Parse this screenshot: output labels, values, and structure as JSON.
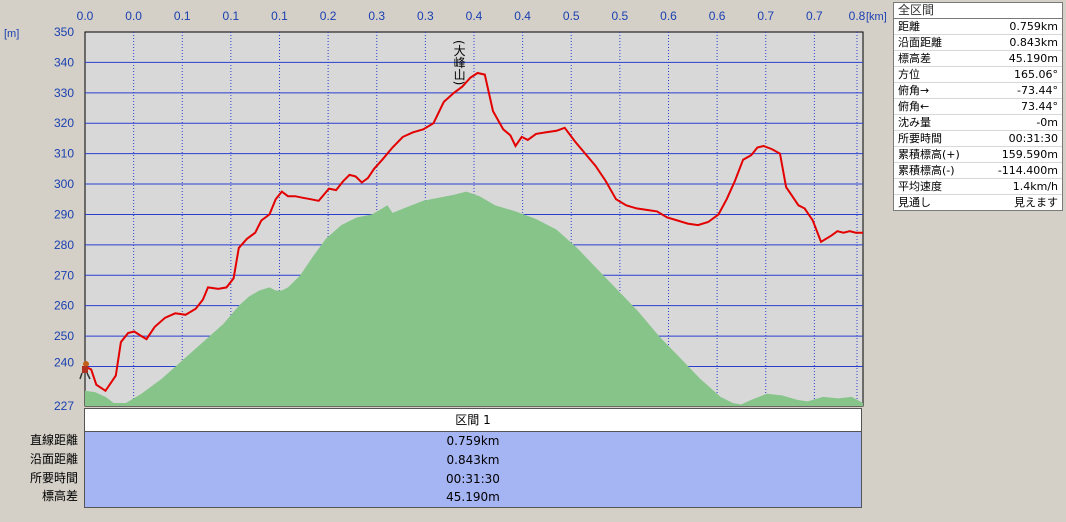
{
  "chart_data": {
    "type": "line",
    "x_unit": "[km]",
    "y_unit": "[m]",
    "x_tick_labels": [
      "0.0",
      "0.0",
      "0.1",
      "0.1",
      "0.1",
      "0.2",
      "0.3",
      "0.3",
      "0.4",
      "0.4",
      "0.5",
      "0.5",
      "0.6",
      "0.6",
      "0.7",
      "0.7",
      "0.8"
    ],
    "y_tick_labels": [
      "227",
      "240",
      "250",
      "260",
      "270",
      "280",
      "290",
      "300",
      "310",
      "320",
      "330",
      "340",
      "350"
    ],
    "ylim": [
      227,
      350
    ],
    "xlim": [
      0,
      0.759
    ],
    "grid": true,
    "peak_label": "(大峰山)",
    "peak_x": 0.365,
    "series": [
      {
        "color": "#e30000",
        "points": [
          [
            0.0,
            240
          ],
          [
            0.006,
            239
          ],
          [
            0.011,
            234
          ],
          [
            0.02,
            232
          ],
          [
            0.03,
            237
          ],
          [
            0.035,
            248
          ],
          [
            0.042,
            251
          ],
          [
            0.048,
            251.5
          ],
          [
            0.055,
            250
          ],
          [
            0.06,
            249
          ],
          [
            0.068,
            253
          ],
          [
            0.078,
            256
          ],
          [
            0.088,
            257.5
          ],
          [
            0.098,
            257
          ],
          [
            0.108,
            259
          ],
          [
            0.115,
            262
          ],
          [
            0.12,
            266
          ],
          [
            0.13,
            265.5
          ],
          [
            0.138,
            266
          ],
          [
            0.145,
            269
          ],
          [
            0.15,
            279
          ],
          [
            0.158,
            282
          ],
          [
            0.166,
            284
          ],
          [
            0.172,
            288
          ],
          [
            0.18,
            290
          ],
          [
            0.186,
            295
          ],
          [
            0.192,
            297.5
          ],
          [
            0.198,
            296
          ],
          [
            0.205,
            296
          ],
          [
            0.212,
            295.5
          ],
          [
            0.22,
            295
          ],
          [
            0.228,
            294.5
          ],
          [
            0.238,
            298.5
          ],
          [
            0.245,
            298
          ],
          [
            0.252,
            301
          ],
          [
            0.258,
            303
          ],
          [
            0.264,
            302.5
          ],
          [
            0.27,
            300.5
          ],
          [
            0.276,
            302
          ],
          [
            0.282,
            305
          ],
          [
            0.29,
            308
          ],
          [
            0.3,
            312
          ],
          [
            0.31,
            315.5
          ],
          [
            0.32,
            317
          ],
          [
            0.33,
            318
          ],
          [
            0.34,
            320
          ],
          [
            0.35,
            327
          ],
          [
            0.36,
            330
          ],
          [
            0.368,
            332
          ],
          [
            0.376,
            335
          ],
          [
            0.383,
            336.5
          ],
          [
            0.39,
            336
          ],
          [
            0.398,
            324
          ],
          [
            0.408,
            318
          ],
          [
            0.415,
            316
          ],
          [
            0.42,
            312.5
          ],
          [
            0.426,
            315.5
          ],
          [
            0.432,
            314.5
          ],
          [
            0.44,
            316.5
          ],
          [
            0.45,
            317
          ],
          [
            0.46,
            317.5
          ],
          [
            0.468,
            318.5
          ],
          [
            0.478,
            314
          ],
          [
            0.488,
            310
          ],
          [
            0.498,
            306
          ],
          [
            0.508,
            301
          ],
          [
            0.518,
            295
          ],
          [
            0.528,
            293
          ],
          [
            0.538,
            292
          ],
          [
            0.548,
            291.5
          ],
          [
            0.558,
            291
          ],
          [
            0.568,
            289
          ],
          [
            0.578,
            288
          ],
          [
            0.588,
            287
          ],
          [
            0.598,
            286.5
          ],
          [
            0.608,
            287.5
          ],
          [
            0.618,
            290
          ],
          [
            0.626,
            295
          ],
          [
            0.634,
            301
          ],
          [
            0.642,
            308
          ],
          [
            0.65,
            309.5
          ],
          [
            0.656,
            312
          ],
          [
            0.662,
            312.5
          ],
          [
            0.67,
            311.5
          ],
          [
            0.678,
            310
          ],
          [
            0.684,
            299
          ],
          [
            0.69,
            296
          ],
          [
            0.696,
            293
          ],
          [
            0.702,
            292
          ],
          [
            0.71,
            288
          ],
          [
            0.718,
            281
          ],
          [
            0.728,
            283
          ],
          [
            0.734,
            284.5
          ],
          [
            0.74,
            284
          ],
          [
            0.746,
            284.5
          ],
          [
            0.752,
            284
          ],
          [
            0.759,
            284
          ]
        ]
      }
    ],
    "area_series": {
      "color": "#86c48a",
      "points": [
        [
          0.0,
          232
        ],
        [
          0.01,
          231.5
        ],
        [
          0.02,
          230
        ],
        [
          0.028,
          228
        ],
        [
          0.04,
          228
        ],
        [
          0.055,
          231
        ],
        [
          0.075,
          236
        ],
        [
          0.095,
          242
        ],
        [
          0.115,
          248
        ],
        [
          0.135,
          254
        ],
        [
          0.15,
          260
        ],
        [
          0.16,
          263
        ],
        [
          0.17,
          265
        ],
        [
          0.18,
          266
        ],
        [
          0.186,
          265
        ],
        [
          0.192,
          265
        ],
        [
          0.198,
          266
        ],
        [
          0.21,
          270
        ],
        [
          0.222,
          276
        ],
        [
          0.235,
          282
        ],
        [
          0.25,
          286.5
        ],
        [
          0.265,
          289
        ],
        [
          0.28,
          290
        ],
        [
          0.295,
          293
        ],
        [
          0.3,
          290.5
        ],
        [
          0.315,
          292.5
        ],
        [
          0.33,
          294.5
        ],
        [
          0.345,
          295.5
        ],
        [
          0.36,
          296.5
        ],
        [
          0.372,
          297.5
        ],
        [
          0.385,
          296
        ],
        [
          0.4,
          293
        ],
        [
          0.42,
          291
        ],
        [
          0.44,
          288.5
        ],
        [
          0.46,
          285
        ],
        [
          0.48,
          279
        ],
        [
          0.5,
          272
        ],
        [
          0.52,
          265
        ],
        [
          0.54,
          258
        ],
        [
          0.56,
          250
        ],
        [
          0.58,
          243
        ],
        [
          0.6,
          236
        ],
        [
          0.62,
          230
        ],
        [
          0.632,
          228
        ],
        [
          0.64,
          227.5
        ],
        [
          0.65,
          229
        ],
        [
          0.665,
          231
        ],
        [
          0.68,
          230.5
        ],
        [
          0.695,
          229
        ],
        [
          0.705,
          228.5
        ],
        [
          0.72,
          230
        ],
        [
          0.735,
          229.5
        ],
        [
          0.748,
          230
        ],
        [
          0.759,
          228
        ]
      ]
    }
  },
  "stats": {
    "header": "全区間",
    "rows": [
      {
        "label": "距離",
        "value": "0.759km"
      },
      {
        "label": "沿面距離",
        "value": "0.843km"
      },
      {
        "label": "標高差",
        "value": "45.190m"
      },
      {
        "label": "方位",
        "value": "165.06°"
      },
      {
        "label": "俯角→",
        "value": "-73.44°"
      },
      {
        "label": "俯角←",
        "value": "73.44°"
      },
      {
        "label": "沈み量",
        "value": "-0m"
      },
      {
        "label": "所要時間",
        "value": "00:31:30"
      },
      {
        "label": "累積標高(+)",
        "value": "159.590m"
      },
      {
        "label": "累積標高(-)",
        "value": "-114.400m"
      },
      {
        "label": "平均速度",
        "value": "1.4km/h"
      },
      {
        "label": "見通し",
        "value": "見えます"
      }
    ]
  },
  "segment": {
    "title": "区間 1",
    "row_labels": [
      "直線距離",
      "沿面距離",
      "所要時間",
      "標高差"
    ],
    "values": [
      "0.759km",
      "0.843km",
      "00:31:30",
      "45.190m"
    ]
  },
  "colors": {
    "plot_bg": "#d8d8d8",
    "grid": "#2a3fd0",
    "axis_text": "#1a3fb0",
    "segment_bg": "#a5b4f2"
  }
}
